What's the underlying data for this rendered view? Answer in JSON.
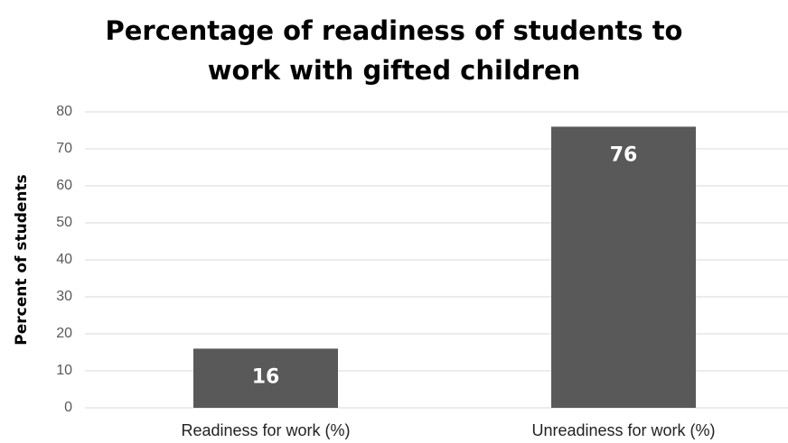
{
  "chart_data": {
    "type": "bar",
    "title": "Percentage of readiness of students to work with gifted children",
    "y_label": "Percent of students",
    "categories": [
      "Readiness for work (%)",
      "Unreadiness for work (%)"
    ],
    "values": [
      16,
      76
    ],
    "color": "#595959",
    "ylim": [
      0,
      80
    ],
    "yticks": [
      0,
      10,
      20,
      30,
      40,
      50,
      60,
      70,
      80
    ],
    "grid": true
  }
}
